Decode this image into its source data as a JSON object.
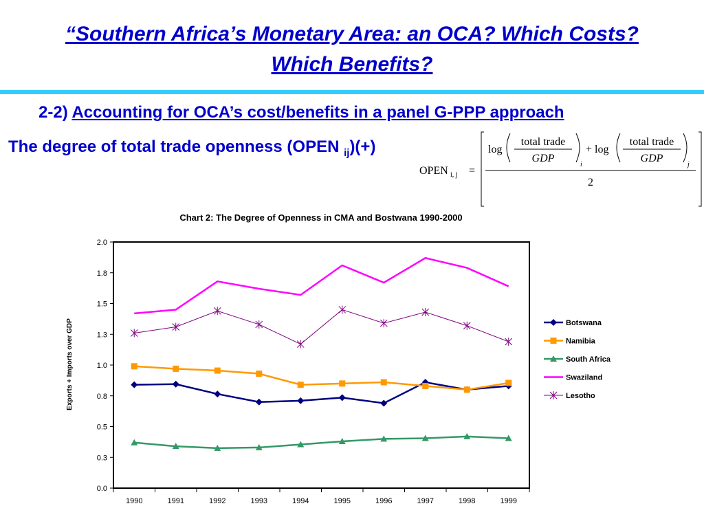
{
  "slide": {
    "title_line1": "“Southern Africa’s Monetary Area: an OCA? Which Costs?",
    "title_line2": "Which Benefits?",
    "section_number": "2-2)",
    "section_title": "Accounting for OCA’s cost/benefits in a panel G-PPP approach",
    "openness_label": "The degree of total trade openness (OPEN ",
    "openness_subscript": "ij",
    "openness_suffix": ")(+)"
  },
  "formula": {
    "lhs": "OPEN",
    "lhs_subscript": "i, j",
    "equals": "=",
    "log_1": "log",
    "plus_log": "+ log",
    "numerator_1": "total trade",
    "denominator_1": "GDP",
    "subscript_1": "i",
    "numerator_2": "total trade",
    "denominator_2": "GDP",
    "subscript_2": "j",
    "divisor": "2"
  },
  "colors": {
    "title": "#0000cc",
    "divider": "#33ccff",
    "Botswana": "#000080",
    "Namibia": "#ff9900",
    "South Africa": "#339966",
    "Swaziland": "#ff00ff",
    "Lesotho": "#800080"
  },
  "chart_data": {
    "type": "line",
    "title": "Chart 2: The Degree of Openness in CMA and Bostwana 1990-2000",
    "xlabel": "",
    "ylabel": "Exports + Imports over GDP",
    "ylim": [
      0,
      2.0
    ],
    "y_ticks": [
      0.0,
      0.25,
      0.5,
      0.75,
      1.0,
      1.25,
      1.5,
      1.75,
      2.0
    ],
    "y_tick_labels": [
      "0.0",
      "0.3",
      "0.5",
      "0.8",
      "1.0",
      "1.3",
      "1.5",
      "1.8",
      "2.0"
    ],
    "categories": [
      "1990",
      "1991",
      "1992",
      "1993",
      "1994",
      "1995",
      "1996",
      "1997",
      "1998",
      "1999"
    ],
    "legend_position": "right",
    "grid": false,
    "series": [
      {
        "name": "Botswana",
        "marker": "diamond",
        "values": [
          0.84,
          0.845,
          0.765,
          0.7,
          0.71,
          0.735,
          0.69,
          0.86,
          0.8,
          0.83
        ]
      },
      {
        "name": "Namibia",
        "marker": "square",
        "values": [
          0.99,
          0.97,
          0.955,
          0.93,
          0.84,
          0.85,
          0.86,
          0.83,
          0.8,
          0.855
        ]
      },
      {
        "name": "South Africa",
        "marker": "triangle",
        "values": [
          0.37,
          0.34,
          0.325,
          0.33,
          0.355,
          0.38,
          0.4,
          0.405,
          0.42,
          0.405
        ]
      },
      {
        "name": "Swaziland",
        "marker": "none",
        "values": [
          1.42,
          1.45,
          1.68,
          1.62,
          1.57,
          1.81,
          1.67,
          1.87,
          1.79,
          1.64
        ]
      },
      {
        "name": "Lesotho",
        "marker": "star",
        "values": [
          1.26,
          1.31,
          1.44,
          1.33,
          1.17,
          1.45,
          1.34,
          1.43,
          1.32,
          1.19
        ]
      }
    ]
  }
}
